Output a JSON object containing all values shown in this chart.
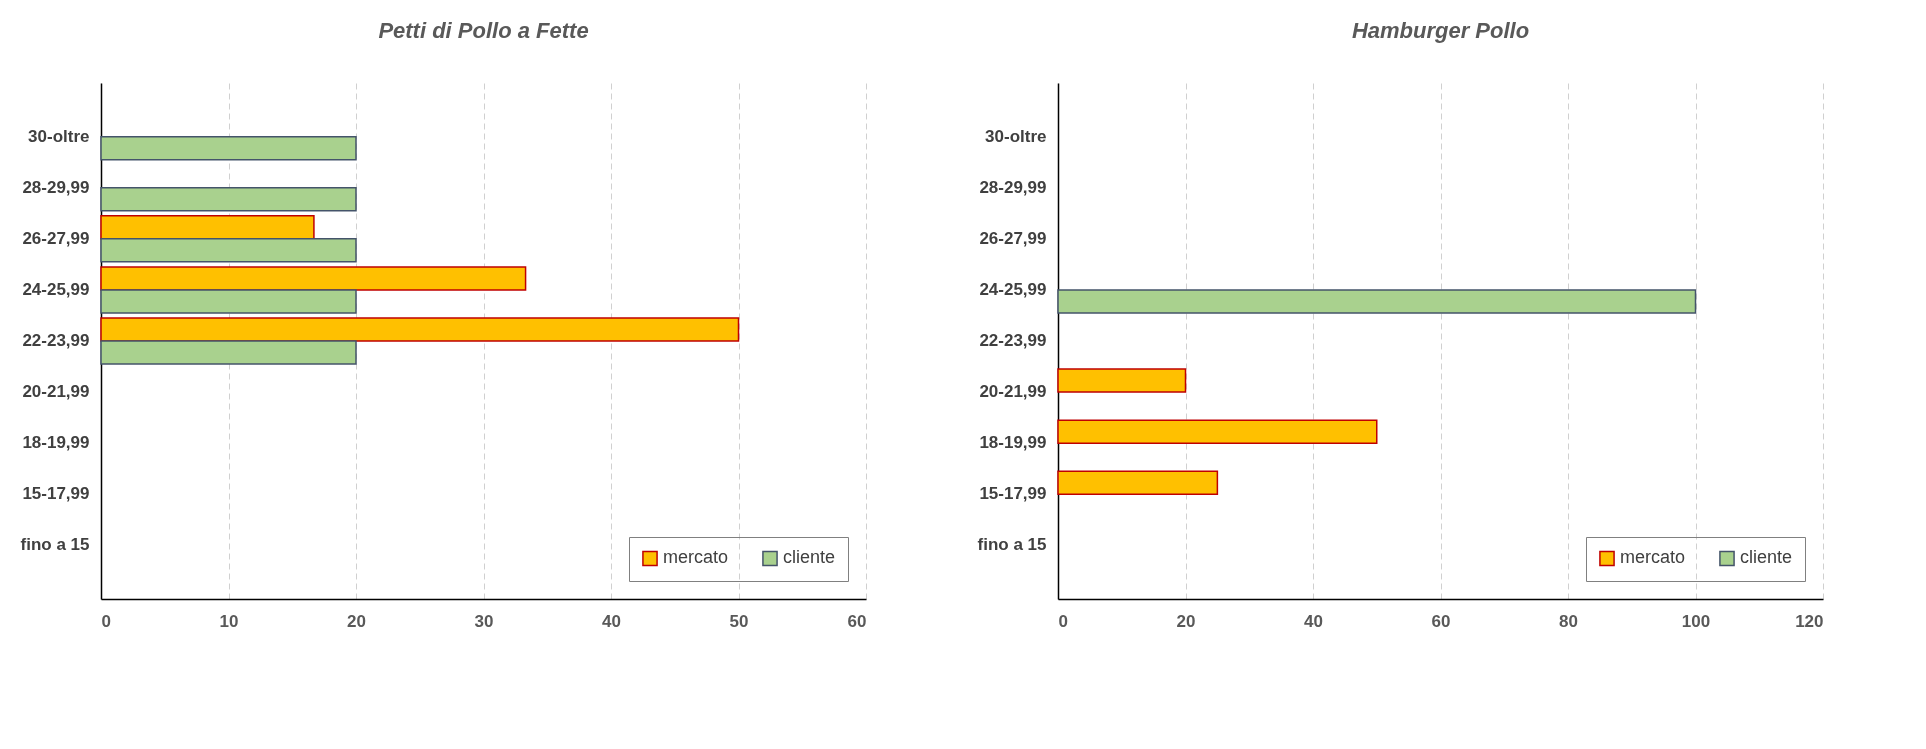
{
  "chart_data": [
    {
      "type": "bar",
      "orientation": "horizontal",
      "title": "Petti di Pollo a Fette",
      "categories": [
        "30-oltre",
        "28-29,99",
        "26-27,99",
        "24-25,99",
        "22-23,99",
        "20-21,99",
        "18-19,99",
        "15-17,99",
        "fino a 15"
      ],
      "series": [
        {
          "name": "mercato",
          "color": "#ffc000",
          "values": [
            null,
            null,
            16.7,
            33.3,
            50,
            null,
            null,
            null,
            null
          ]
        },
        {
          "name": "cliente",
          "color": "#a9d18e",
          "values": [
            20,
            20,
            20,
            20,
            20,
            null,
            null,
            null,
            null
          ]
        }
      ],
      "xlim": [
        0,
        60
      ],
      "xticks": [
        0,
        10,
        20,
        30,
        40,
        50,
        60
      ],
      "grid": "x",
      "legend": "bottom right"
    },
    {
      "type": "bar",
      "orientation": "horizontal",
      "title": "Hamburger  Pollo",
      "categories": [
        "30-oltre",
        "28-29,99",
        "26-27,99",
        "24-25,99",
        "22-23,99",
        "20-21,99",
        "18-19,99",
        "15-17,99",
        "fino a 15"
      ],
      "series": [
        {
          "name": "mercato",
          "color": "#ffc000",
          "values": [
            null,
            null,
            null,
            null,
            null,
            20,
            50,
            25,
            null
          ]
        },
        {
          "name": "cliente",
          "color": "#a9d18e",
          "values": [
            null,
            null,
            null,
            100,
            null,
            null,
            null,
            null,
            null
          ]
        }
      ],
      "xlim": [
        0,
        120
      ],
      "xticks": [
        0,
        20,
        40,
        60,
        80,
        100,
        120
      ],
      "grid": "x",
      "legend": "bottom right"
    }
  ]
}
